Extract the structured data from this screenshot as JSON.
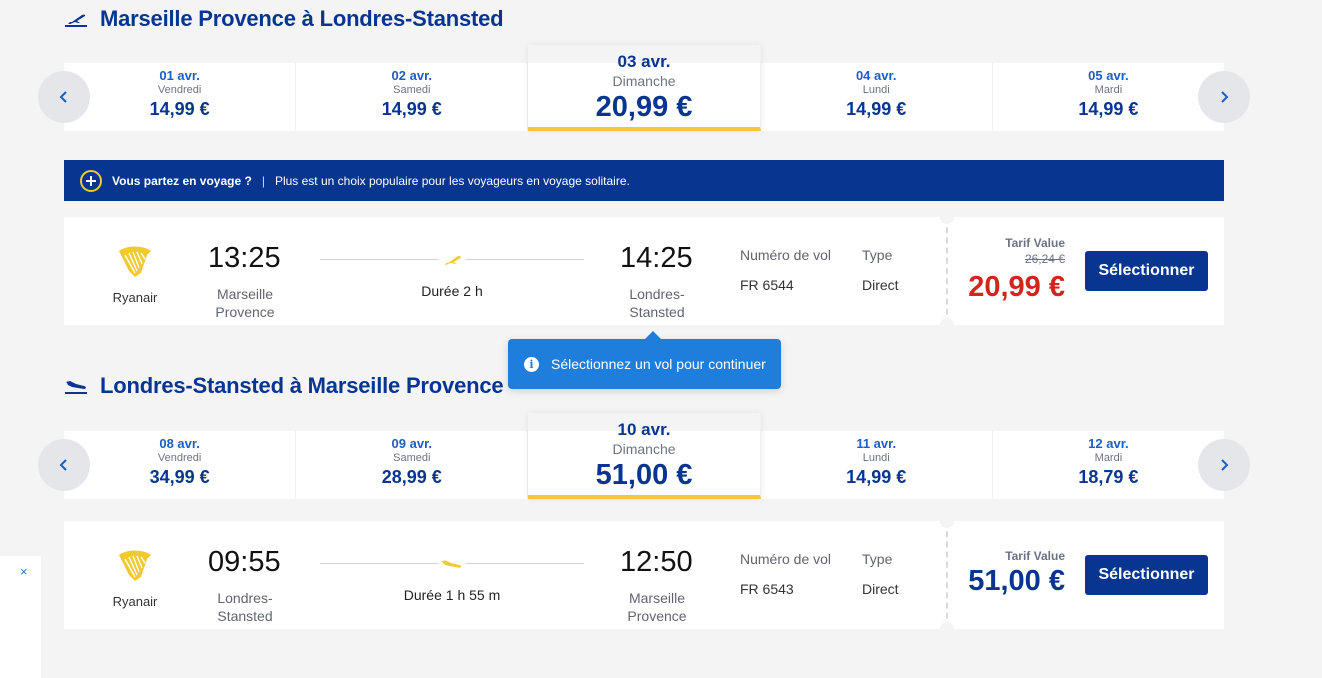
{
  "outbound": {
    "title": "Marseille Provence à Londres-Stansted",
    "dates": [
      {
        "date": "01 avr.",
        "day": "Vendredi",
        "price": "14,99 €"
      },
      {
        "date": "02 avr.",
        "day": "Samedi",
        "price": "14,99 €"
      },
      {
        "date": "03 avr.",
        "day": "Dimanche",
        "price": "20,99 €"
      },
      {
        "date": "04 avr.",
        "day": "Lundi",
        "price": "14,99 €"
      },
      {
        "date": "05 avr.",
        "day": "Mardi",
        "price": "14,99 €"
      }
    ],
    "flight": {
      "airline": "Ryanair",
      "dep_time": "13:25",
      "dep_city_1": "Marseille",
      "dep_city_2": "Provence",
      "duration": "Durée 2 h",
      "arr_time": "14:25",
      "arr_city_1": "Londres-",
      "arr_city_2": "Stansted",
      "flight_no_label": "Numéro de vol",
      "flight_no": "FR 6544",
      "type_label": "Type",
      "type": "Direct",
      "tarif_label": "Tarif Value",
      "old_price": "26,24 €",
      "price": "20,99 €",
      "select_label": "Sélectionner"
    }
  },
  "banner": {
    "bold": "Vous partez en voyage ?",
    "separator": "|",
    "text": "Plus est un choix populaire pour les voyageurs en voyage solitaire."
  },
  "tooltip": {
    "info_glyph": "i",
    "text": "Sélectionnez un vol pour continuer"
  },
  "inbound": {
    "title": "Londres-Stansted à Marseille Provence",
    "dates": [
      {
        "date": "08 avr.",
        "day": "Vendredi",
        "price": "34,99 €"
      },
      {
        "date": "09 avr.",
        "day": "Samedi",
        "price": "28,99 €"
      },
      {
        "date": "10 avr.",
        "day": "Dimanche",
        "price": "51,00 €"
      },
      {
        "date": "11 avr.",
        "day": "Lundi",
        "price": "14,99 €"
      },
      {
        "date": "12 avr.",
        "day": "Mardi",
        "price": "18,79 €"
      }
    ],
    "flight": {
      "airline": "Ryanair",
      "dep_time": "09:55",
      "dep_city_1": "Londres-",
      "dep_city_2": "Stansted",
      "duration": "Durée 1 h 55 m",
      "arr_time": "12:50",
      "arr_city_1": "Marseille",
      "arr_city_2": "Provence",
      "flight_no_label": "Numéro de vol",
      "flight_no": "FR 6543",
      "type_label": "Type",
      "type": "Direct",
      "tarif_label": "Tarif Value",
      "price": "51,00 €",
      "select_label": "Sélectionner"
    }
  },
  "side_panel": {
    "close_glyph": "×"
  },
  "colors": {
    "brand_blue": "#073590",
    "accent_yellow": "#f1c933",
    "sale_red": "#d0271d",
    "tooltip_blue": "#1f7ddc"
  },
  "icons": [
    "takeoff-icon",
    "landing-icon",
    "chevron-left-icon",
    "chevron-right-icon",
    "plus-icon",
    "ryanair-harp-logo",
    "plane-icon",
    "info-icon",
    "close-icon"
  ]
}
